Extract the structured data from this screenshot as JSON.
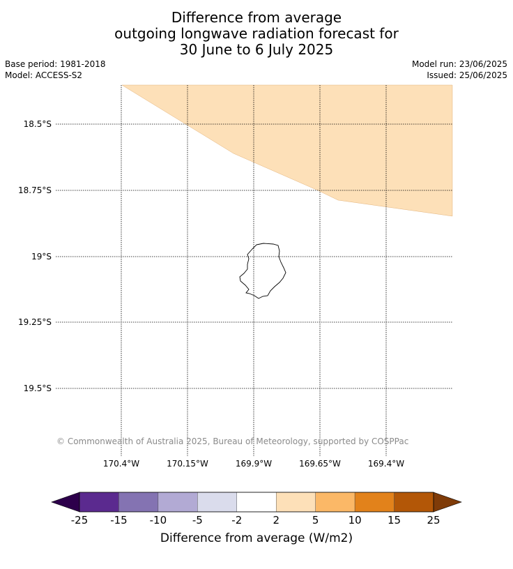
{
  "header": {
    "title_lines": [
      "Difference from average",
      "outgoing longwave radiation forecast for",
      "30 June to 6 July 2025"
    ],
    "base_period": "Base period: 1981-2018",
    "model": "Model: ACCESS-S2",
    "model_run": "Model run: 23/06/2025",
    "issued": "Issued: 25/06/2025"
  },
  "map": {
    "lat_labels": [
      "18.5°S",
      "18.75°S",
      "19°S",
      "19.25°S",
      "19.5°S"
    ],
    "lon_labels": [
      "170.4°W",
      "170.15°W",
      "169.9°W",
      "169.65°W",
      "169.4°W"
    ],
    "anomaly_region_category": "2 to 5",
    "land_feature": "island-coastline",
    "copyright": "© Commonwealth of Australia 2025, Bureau of Meteorology, supported by COSPPac"
  },
  "colorbar": {
    "label": "Difference from average (W/m2)",
    "ticks": [
      "-25",
      "-15",
      "-10",
      "-5",
      "-2",
      "2",
      "5",
      "10",
      "15",
      "25"
    ],
    "colors": [
      "#5b2a8f",
      "#8473b2",
      "#b2aad4",
      "#dadcec",
      "#ffffff",
      "#fde0b8",
      "#fbb867",
      "#e2821b",
      "#b35707"
    ],
    "under_color": "#2d004b",
    "over_color": "#7f3b08"
  }
}
